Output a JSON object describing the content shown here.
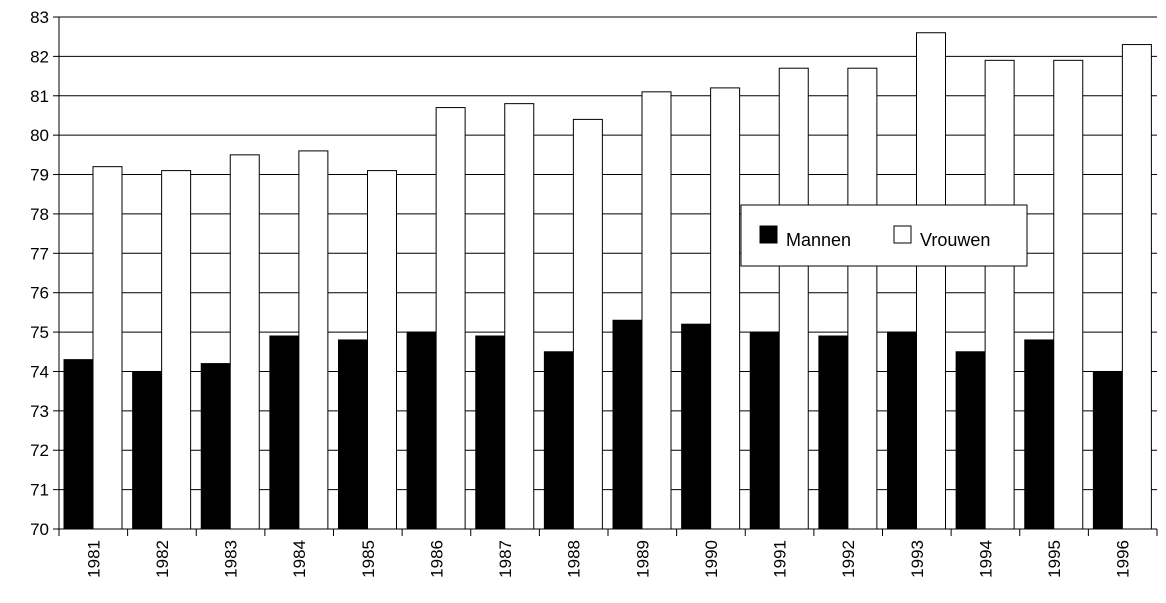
{
  "chart_data": {
    "type": "bar",
    "title": "",
    "xlabel": "",
    "ylabel": "",
    "categories": [
      "1981",
      "1982",
      "1983",
      "1984",
      "1985",
      "1986",
      "1987",
      "1988",
      "1989",
      "1990",
      "1991",
      "1992",
      "1993",
      "1994",
      "1995",
      "1996"
    ],
    "series": [
      {
        "name": "Mannen",
        "color": "#000000",
        "values": [
          74.3,
          74.0,
          74.2,
          74.9,
          74.8,
          75.0,
          74.9,
          74.5,
          75.3,
          75.2,
          75.0,
          74.9,
          75.0,
          74.5,
          74.8,
          74.0
        ]
      },
      {
        "name": "Vrouwen",
        "color": "#ffffff",
        "values": [
          79.2,
          79.1,
          79.5,
          79.6,
          79.1,
          80.7,
          80.8,
          80.4,
          81.1,
          81.2,
          81.7,
          81.7,
          82.6,
          81.9,
          81.9,
          82.3
        ]
      }
    ],
    "ylim": [
      70,
      83
    ],
    "yticks": [
      70,
      71,
      72,
      73,
      74,
      75,
      76,
      77,
      78,
      79,
      80,
      81,
      82,
      83
    ],
    "grid": true,
    "legend_position": "center-right"
  }
}
